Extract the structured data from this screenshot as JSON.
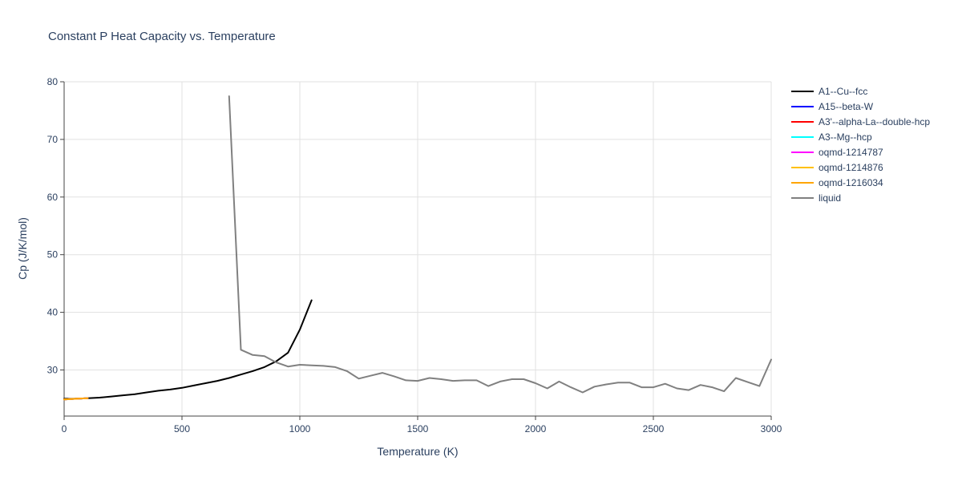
{
  "chart_data": {
    "type": "line",
    "title": "Constant P Heat Capacity vs. Temperature",
    "xlabel": "Temperature (K)",
    "ylabel": "Cp (J/K/mol)",
    "xlim": [
      0,
      3000
    ],
    "ylim": [
      22,
      80
    ],
    "xticks": [
      0,
      500,
      1000,
      1500,
      2000,
      2500,
      3000
    ],
    "xtick_labels": [
      "0",
      "500",
      "1000",
      "1500",
      "2000",
      "2500",
      "3000"
    ],
    "yticks": [
      30,
      40,
      50,
      60,
      70,
      80
    ],
    "ytick_labels": [
      "30",
      "40",
      "50",
      "60",
      "70",
      "80"
    ],
    "grid": true,
    "legend_position": "right",
    "series": [
      {
        "name": "A1--Cu--fcc",
        "color": "#000000",
        "x": [
          0,
          50,
          100,
          150,
          200,
          250,
          300,
          350,
          400,
          450,
          500,
          550,
          600,
          650,
          700,
          750,
          800,
          850,
          900,
          950,
          1000,
          1050
        ],
        "y": [
          25.0,
          25.0,
          25.1,
          25.2,
          25.4,
          25.6,
          25.8,
          26.1,
          26.4,
          26.6,
          26.9,
          27.3,
          27.7,
          28.1,
          28.6,
          29.2,
          29.8,
          30.5,
          31.5,
          33.0,
          37.0,
          42.1
        ]
      },
      {
        "name": "A15--beta-W",
        "color": "#0000ff",
        "x": [
          0,
          50,
          100
        ],
        "y": [
          24.9,
          25.0,
          25.1
        ]
      },
      {
        "name": "A3'--alpha-La--double-hcp",
        "color": "#ff0000",
        "x": [
          0,
          50,
          100
        ],
        "y": [
          24.9,
          25.0,
          25.1
        ]
      },
      {
        "name": "A3--Mg--hcp",
        "color": "#00ffff",
        "x": [
          0,
          50,
          100
        ],
        "y": [
          24.9,
          25.0,
          25.1
        ]
      },
      {
        "name": "oqmd-1214787",
        "color": "#ff00ff",
        "x": [
          0,
          50,
          100
        ],
        "y": [
          24.9,
          25.0,
          25.1
        ]
      },
      {
        "name": "oqmd-1214876",
        "color": "#ffc000",
        "x": [
          0,
          50,
          100
        ],
        "y": [
          24.9,
          25.0,
          25.1
        ]
      },
      {
        "name": "oqmd-1216034",
        "color": "#ffa500",
        "x": [
          0,
          50,
          100
        ],
        "y": [
          24.9,
          25.0,
          25.1
        ]
      },
      {
        "name": "liquid",
        "color": "#808080",
        "x": [
          700,
          750,
          800,
          850,
          900,
          950,
          1000,
          1050,
          1100,
          1150,
          1200,
          1250,
          1300,
          1350,
          1400,
          1450,
          1500,
          1550,
          1600,
          1650,
          1700,
          1750,
          1800,
          1850,
          1900,
          1950,
          2000,
          2050,
          2100,
          2150,
          2200,
          2250,
          2300,
          2350,
          2400,
          2450,
          2500,
          2550,
          2600,
          2650,
          2700,
          2750,
          2800,
          2850,
          2900,
          2950,
          3000
        ],
        "y": [
          77.5,
          33.5,
          32.6,
          32.4,
          31.3,
          30.6,
          30.9,
          30.8,
          30.7,
          30.5,
          29.8,
          28.5,
          29.0,
          29.5,
          28.9,
          28.2,
          28.1,
          28.6,
          28.4,
          28.1,
          28.2,
          28.2,
          27.2,
          28.0,
          28.4,
          28.4,
          27.7,
          26.8,
          28.0,
          27.0,
          26.1,
          27.1,
          27.5,
          27.8,
          27.8,
          27.0,
          27.0,
          27.6,
          26.8,
          26.5,
          27.4,
          27.0,
          26.3,
          28.6,
          27.9,
          27.2,
          31.8
        ]
      }
    ]
  }
}
